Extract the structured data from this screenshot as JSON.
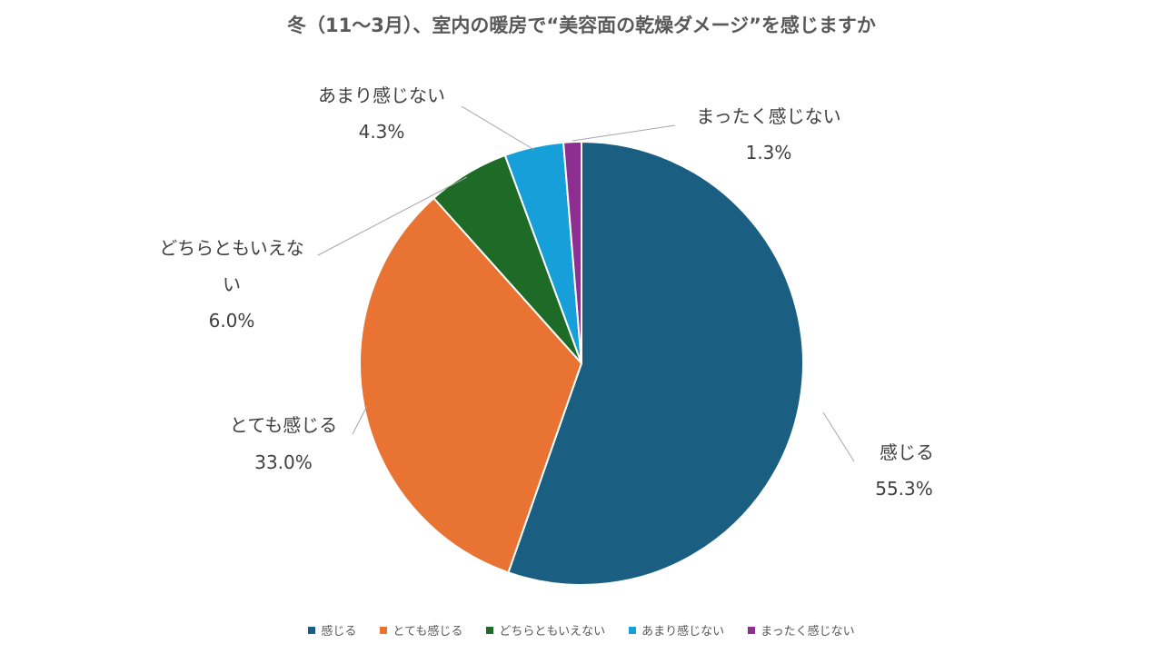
{
  "chart_data": {
    "type": "pie",
    "title": "冬（11〜3月）、室内の暖房で“美容面の乾燥ダメージ”を感じますか",
    "slices": [
      {
        "label": "感じる",
        "value": 55.3,
        "value_label": "55.3%",
        "color": "#1a5e82"
      },
      {
        "label": "とても感じる",
        "value": 33.0,
        "value_label": "33.0%",
        "color": "#e87332"
      },
      {
        "label": "どちらともいえない",
        "value": 6.0,
        "value_label": "6.0%",
        "color": "#1d6b26"
      },
      {
        "label": "あまり感じない",
        "value": 4.3,
        "value_label": "4.3%",
        "color": "#169fd8"
      },
      {
        "label": "まったく感じない",
        "value": 1.3,
        "value_label": "1.3%",
        "color": "#8c2f91"
      }
    ],
    "legend_position": "bottom",
    "leader_color": "#a6a6a6"
  }
}
